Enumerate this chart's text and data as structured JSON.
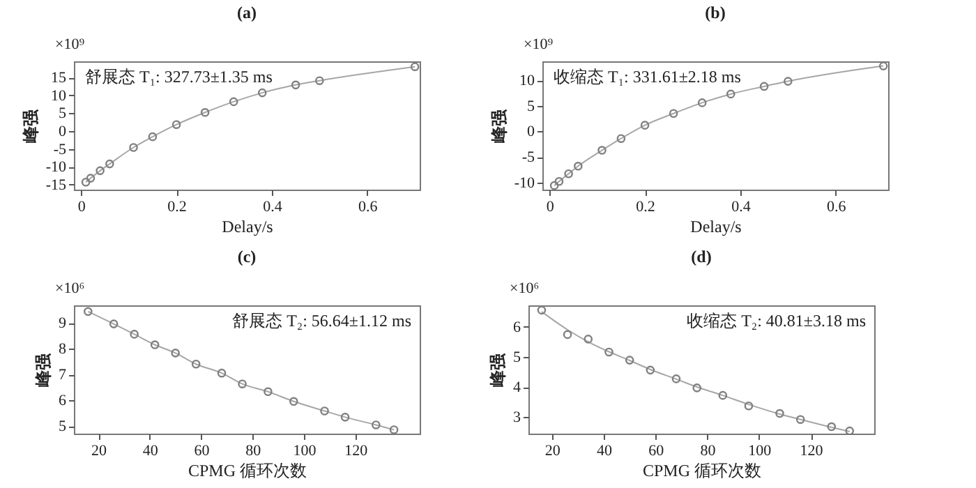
{
  "chart_data": [
    {
      "type": "scatter",
      "title": "(a)",
      "xlabel": "Delay/s",
      "ylabel": "峰强",
      "annotations": [
        "×10⁹",
        "舒展态 T₁: 327.73±1.35 ms"
      ],
      "marker": "circle",
      "grid": false,
      "xlim": [
        -0.015,
        0.71
      ],
      "xticks": [
        0,
        0.2,
        0.4,
        0.6
      ],
      "ylim": [
        -16.4,
        19.5
      ],
      "yticks": [
        -15,
        -10,
        -5,
        0,
        5,
        10,
        15
      ],
      "series": [
        {
          "type": "scatter",
          "color": "#808080",
          "x": [
            0.01,
            0.02,
            0.04,
            0.06,
            0.11,
            0.15,
            0.2,
            0.26,
            0.32,
            0.38,
            0.45,
            0.5,
            0.7
          ],
          "values": [
            -14.3,
            -13.2,
            -11.1,
            -9.2,
            -4.6,
            -1.6,
            1.8,
            5.2,
            8.2,
            10.7,
            12.9,
            14.1,
            18.0
          ]
        },
        {
          "type": "line",
          "marker": "none",
          "color": "#a6a6a6",
          "x": [
            0.01,
            0.02,
            0.04,
            0.06,
            0.11,
            0.15,
            0.2,
            0.26,
            0.32,
            0.38,
            0.45,
            0.5,
            0.7
          ],
          "values": [
            -14.3,
            -13.2,
            -11.1,
            -9.2,
            -4.6,
            -1.6,
            1.8,
            5.2,
            8.2,
            10.7,
            12.9,
            14.1,
            18.0
          ]
        }
      ]
    },
    {
      "type": "scatter",
      "title": "(b)",
      "xlabel": "Delay/s",
      "ylabel": "峰强",
      "annotations": [
        "×10⁹",
        "收缩态 T₁: 331.61±2.18 ms"
      ],
      "marker": "circle",
      "grid": false,
      "xlim": [
        -0.015,
        0.71
      ],
      "xticks": [
        0,
        0.2,
        0.4,
        0.6
      ],
      "ylim": [
        -11.4,
        13.7
      ],
      "yticks": [
        -10,
        -5,
        0,
        5,
        10
      ],
      "series": [
        {
          "type": "scatter",
          "color": "#808080",
          "x": [
            0.01,
            0.02,
            0.04,
            0.06,
            0.11,
            0.15,
            0.2,
            0.26,
            0.32,
            0.38,
            0.45,
            0.5,
            0.7
          ],
          "values": [
            -10.6,
            -9.8,
            -8.3,
            -6.8,
            -3.7,
            -1.4,
            1.2,
            3.5,
            5.6,
            7.3,
            8.8,
            9.8,
            12.8
          ]
        },
        {
          "type": "line",
          "marker": "none",
          "color": "#a6a6a6",
          "x": [
            0.01,
            0.02,
            0.04,
            0.06,
            0.11,
            0.15,
            0.2,
            0.26,
            0.32,
            0.38,
            0.45,
            0.5,
            0.7
          ],
          "values": [
            -10.6,
            -9.8,
            -8.3,
            -6.8,
            -3.7,
            -1.4,
            1.2,
            3.5,
            5.6,
            7.3,
            8.8,
            9.8,
            12.8
          ]
        }
      ]
    },
    {
      "type": "scatter",
      "title": "(c)",
      "xlabel": "CPMG 循环次数",
      "ylabel": "峰强",
      "annotations": [
        "×10⁶",
        "舒展态 T₂: 56.64±1.12 ms"
      ],
      "marker": "circle",
      "grid": false,
      "xlim": [
        10.5,
        145
      ],
      "xticks": [
        20,
        40,
        60,
        80,
        100,
        120
      ],
      "ylim": [
        4.71,
        9.69
      ],
      "yticks": [
        5,
        6,
        7,
        8,
        9
      ],
      "series": [
        {
          "type": "scatter",
          "color": "#808080",
          "x": [
            16,
            26,
            34,
            42,
            50,
            58,
            68,
            76,
            86,
            96,
            108,
            116,
            128,
            135
          ],
          "values": [
            9.45,
            8.97,
            8.57,
            8.16,
            7.84,
            7.41,
            7.06,
            6.64,
            6.34,
            5.96,
            5.59,
            5.35,
            5.05,
            4.86
          ]
        },
        {
          "type": "line",
          "marker": "none",
          "color": "#a6a6a6",
          "x": [
            16,
            26,
            34,
            42,
            50,
            58,
            68,
            76,
            86,
            96,
            108,
            116,
            128,
            135
          ],
          "values": [
            9.45,
            8.97,
            8.57,
            8.16,
            7.84,
            7.41,
            7.06,
            6.64,
            6.34,
            5.96,
            5.59,
            5.35,
            5.05,
            4.86
          ]
        }
      ]
    },
    {
      "type": "scatter",
      "title": "(d)",
      "xlabel": "CPMG 循环次数",
      "ylabel": "峰强",
      "annotations": [
        "×10⁶",
        "收缩态 T₂: 40.81±3.18 ms"
      ],
      "marker": "circle",
      "grid": false,
      "xlim": [
        10.9,
        144.5
      ],
      "xticks": [
        20,
        40,
        60,
        80,
        100,
        120
      ],
      "ylim": [
        2.45,
        6.71
      ],
      "yticks": [
        3,
        4,
        5,
        6
      ],
      "series": [
        {
          "type": "scatter",
          "color": "#808080",
          "x": [
            16,
            26,
            34,
            42,
            50,
            58,
            68,
            76,
            86,
            96,
            108,
            116,
            128,
            135
          ],
          "values": [
            6.55,
            5.74,
            5.59,
            5.16,
            4.89,
            4.56,
            4.27,
            3.97,
            3.72,
            3.37,
            3.12,
            2.92,
            2.68,
            2.54
          ]
        },
        {
          "type": "line",
          "marker": "none",
          "color": "#a6a6a6",
          "x": [
            16,
            26,
            34,
            42,
            50,
            58,
            68,
            76,
            86,
            96,
            108,
            116,
            128,
            135
          ],
          "values": [
            6.5,
            5.9,
            5.5,
            5.17,
            4.88,
            4.58,
            4.26,
            4.0,
            3.72,
            3.42,
            3.1,
            2.92,
            2.66,
            2.52
          ]
        }
      ]
    }
  ]
}
